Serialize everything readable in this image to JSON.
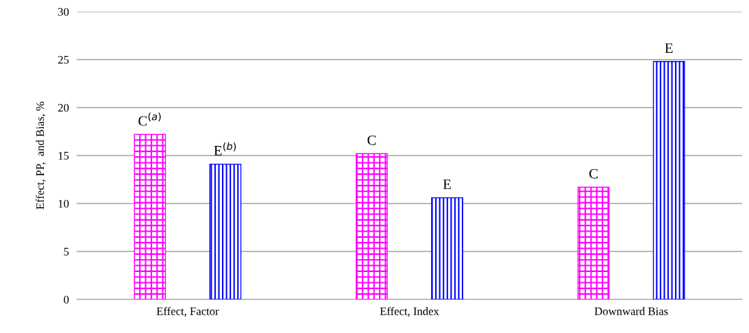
{
  "chart_data": {
    "type": "bar",
    "ylabel": "Effect, PP,  and Bias, %",
    "categories": [
      "Effect, Factor",
      "Effect, Index",
      "Downward Bias"
    ],
    "series": [
      {
        "color": "#ff00ff",
        "values": [
          17.2,
          15.2,
          11.7
        ],
        "value_labels": [
          "C$^{(a)}$",
          "C",
          "C"
        ]
      },
      {
        "color": "#0000ff",
        "values": [
          14.1,
          10.6,
          24.8
        ],
        "value_labels": [
          "E$^{(b)}$",
          "E",
          "E"
        ]
      }
    ],
    "ylim": [
      0,
      30
    ],
    "yticks": [
      0,
      5,
      10,
      15,
      20,
      25,
      30
    ],
    "grid": "y",
    "legend": false
  }
}
